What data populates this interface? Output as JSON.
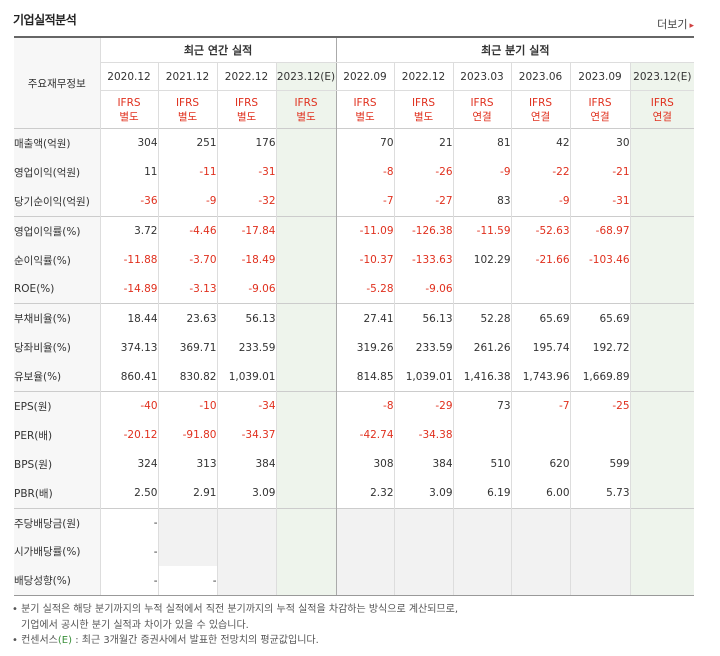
{
  "header": {
    "title": "기업실적분석",
    "more_label": "더보기"
  },
  "table": {
    "corner_label": "주요재무정보",
    "group_annual": "최근 연간 실적",
    "group_quarter": "최근 분기 실적",
    "periods": [
      {
        "date": "2020.12",
        "basis1": "IFRS",
        "basis2": "별도",
        "est": false
      },
      {
        "date": "2021.12",
        "basis1": "IFRS",
        "basis2": "별도",
        "est": false
      },
      {
        "date": "2022.12",
        "basis1": "IFRS",
        "basis2": "별도",
        "est": false
      },
      {
        "date": "2023.12(E)",
        "basis1": "IFRS",
        "basis2": "별도",
        "est": true
      },
      {
        "date": "2022.09",
        "basis1": "IFRS",
        "basis2": "별도",
        "est": false
      },
      {
        "date": "2022.12",
        "basis1": "IFRS",
        "basis2": "별도",
        "est": false
      },
      {
        "date": "2023.03",
        "basis1": "IFRS",
        "basis2": "연결",
        "est": false
      },
      {
        "date": "2023.06",
        "basis1": "IFRS",
        "basis2": "연결",
        "est": false
      },
      {
        "date": "2023.09",
        "basis1": "IFRS",
        "basis2": "연결",
        "est": false
      },
      {
        "date": "2023.12(E)",
        "basis1": "IFRS",
        "basis2": "연결",
        "est": true
      }
    ],
    "rows": [
      {
        "label": "매출액(억원)",
        "values": [
          "304",
          "251",
          "176",
          "",
          "70",
          "21",
          "81",
          "42",
          "30",
          ""
        ]
      },
      {
        "label": "영업이익(억원)",
        "values": [
          "11",
          "-11",
          "-31",
          "",
          "-8",
          "-26",
          "-9",
          "-22",
          "-21",
          ""
        ]
      },
      {
        "label": "당기순이익(억원)",
        "values": [
          "-36",
          "-9",
          "-32",
          "",
          "-7",
          "-27",
          "83",
          "-9",
          "-31",
          ""
        ]
      },
      {
        "label": "영업이익률(%)",
        "values": [
          "3.72",
          "-4.46",
          "-17.84",
          "",
          "-11.09",
          "-126.38",
          "-11.59",
          "-52.63",
          "-68.97",
          ""
        ]
      },
      {
        "label": "순이익률(%)",
        "values": [
          "-11.88",
          "-3.70",
          "-18.49",
          "",
          "-10.37",
          "-133.63",
          "102.29",
          "-21.66",
          "-103.46",
          ""
        ]
      },
      {
        "label": "ROE(%)",
        "values": [
          "-14.89",
          "-3.13",
          "-9.06",
          "",
          "-5.28",
          "-9.06",
          "",
          "",
          "",
          ""
        ]
      },
      {
        "label": "부채비율(%)",
        "values": [
          "18.44",
          "23.63",
          "56.13",
          "",
          "27.41",
          "56.13",
          "52.28",
          "65.69",
          "65.69",
          ""
        ]
      },
      {
        "label": "당좌비율(%)",
        "values": [
          "374.13",
          "369.71",
          "233.59",
          "",
          "319.26",
          "233.59",
          "261.26",
          "195.74",
          "192.72",
          ""
        ]
      },
      {
        "label": "유보율(%)",
        "values": [
          "860.41",
          "830.82",
          "1,039.01",
          "",
          "814.85",
          "1,039.01",
          "1,416.38",
          "1,743.96",
          "1,669.89",
          ""
        ]
      },
      {
        "label": "EPS(원)",
        "values": [
          "-40",
          "-10",
          "-34",
          "",
          "-8",
          "-29",
          "73",
          "-7",
          "-25",
          ""
        ]
      },
      {
        "label": "PER(배)",
        "values": [
          "-20.12",
          "-91.80",
          "-34.37",
          "",
          "-42.74",
          "-34.38",
          "",
          "",
          "",
          ""
        ]
      },
      {
        "label": "BPS(원)",
        "values": [
          "324",
          "313",
          "384",
          "",
          "308",
          "384",
          "510",
          "620",
          "599",
          ""
        ]
      },
      {
        "label": "PBR(배)",
        "values": [
          "2.50",
          "2.91",
          "3.09",
          "",
          "2.32",
          "3.09",
          "6.19",
          "6.00",
          "5.73",
          ""
        ]
      },
      {
        "label": "주당배당금(원)",
        "values": [
          "-",
          "",
          "",
          "",
          "",
          "",
          "",
          "",
          "",
          ""
        ]
      },
      {
        "label": "시가배당률(%)",
        "values": [
          "-",
          "",
          "",
          "",
          "",
          "",
          "",
          "",
          "",
          ""
        ]
      },
      {
        "label": "배당성향(%)",
        "values": [
          "-",
          "-",
          "",
          "",
          "",
          "",
          "",
          "",
          "",
          ""
        ]
      }
    ]
  },
  "notes": {
    "line1": "분기 실적은 해당 분기까지의 누적 실적에서 직전 분기까지의 누적 실적을 차감하는 방식으로 계산되므로,",
    "line2": "기업에서 공시한 분기 실적과 차이가 있을 수 있습니다.",
    "line3_prefix": "컨센서스",
    "line3_e": "(E)",
    "line3_suffix": " : 최근 3개월간 증권사에서 발표한 전망치의 평균값입니다."
  }
}
